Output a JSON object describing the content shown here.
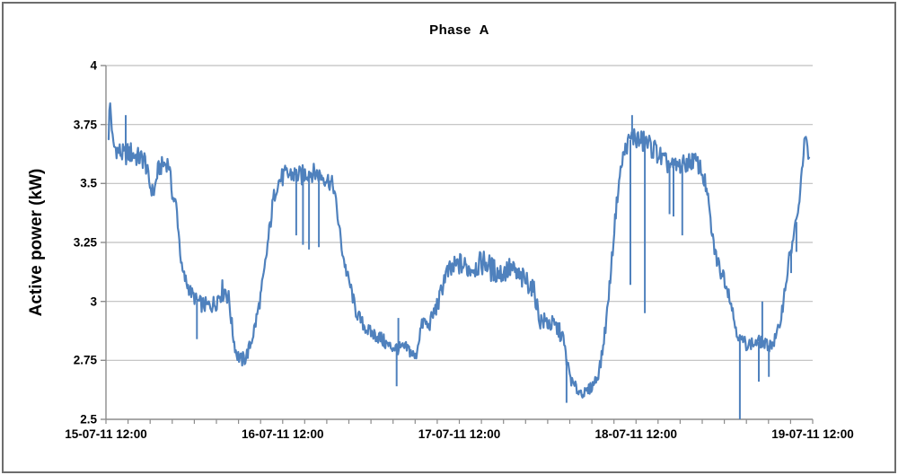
{
  "chart_data": {
    "type": "line",
    "title": "Phase  A",
    "ylabel": "Active power (kW)",
    "xlabel": "",
    "ylim": [
      2.5,
      4.0
    ],
    "ytick_step": 0.25,
    "ytick_labels": [
      "4",
      "3.75",
      "3.5",
      "3.25",
      "3",
      "2.75",
      "2.5"
    ],
    "xtick_labels": [
      "15-07-11 12:00",
      "16-07-11 12:00",
      "17-07-11 12:00",
      "18-07-11 12:00",
      "19-07-11 12:00"
    ],
    "x_range_days": [
      0,
      4
    ],
    "x_minor_ticks_per_day": 8,
    "grid": true,
    "legend": "none",
    "colors": {
      "line": "#4F81BD",
      "grid": "#BFBFBF",
      "axis": "#8C8C8C",
      "text": "#000000",
      "border": "#6D6D6D",
      "background": "#FFFFFF"
    },
    "series": [
      {
        "name": "Active power Phase A (kW)",
        "note": "points are [t_days_from_15-07-11_12:00, kW, noise_halfband_kW]; spikes are [t_days, kW]",
        "points": [
          [
            0.015,
            3.7,
            0.02
          ],
          [
            0.022,
            3.86,
            0.012
          ],
          [
            0.04,
            3.66,
            0.035
          ],
          [
            0.07,
            3.64,
            0.045
          ],
          [
            0.1,
            3.62,
            0.045
          ],
          [
            0.14,
            3.63,
            0.05
          ],
          [
            0.18,
            3.61,
            0.045
          ],
          [
            0.22,
            3.6,
            0.045
          ],
          [
            0.252,
            3.48,
            0.03
          ],
          [
            0.272,
            3.46,
            0.03
          ],
          [
            0.295,
            3.56,
            0.035
          ],
          [
            0.325,
            3.58,
            0.04
          ],
          [
            0.355,
            3.59,
            0.035
          ],
          [
            0.378,
            3.44,
            0.03
          ],
          [
            0.398,
            3.41,
            0.03
          ],
          [
            0.415,
            3.26,
            0.03
          ],
          [
            0.43,
            3.13,
            0.03
          ],
          [
            0.455,
            3.08,
            0.035
          ],
          [
            0.48,
            3.04,
            0.03
          ],
          [
            0.505,
            3.01,
            0.03
          ],
          [
            0.535,
            2.99,
            0.035
          ],
          [
            0.575,
            2.98,
            0.035
          ],
          [
            0.615,
            2.99,
            0.04
          ],
          [
            0.648,
            3.04,
            0.05
          ],
          [
            0.678,
            3.05,
            0.05
          ],
          [
            0.698,
            3.0,
            0.04
          ],
          [
            0.718,
            2.86,
            0.03
          ],
          [
            0.738,
            2.78,
            0.03
          ],
          [
            0.765,
            2.75,
            0.033
          ],
          [
            0.79,
            2.76,
            0.033
          ],
          [
            0.815,
            2.81,
            0.03
          ],
          [
            0.845,
            2.9,
            0.035
          ],
          [
            0.868,
            2.99,
            0.03
          ],
          [
            0.893,
            3.1,
            0.04
          ],
          [
            0.922,
            3.28,
            0.04
          ],
          [
            0.947,
            3.43,
            0.035
          ],
          [
            0.968,
            3.5,
            0.04
          ],
          [
            1.005,
            3.53,
            0.045
          ],
          [
            1.05,
            3.54,
            0.045
          ],
          [
            1.1,
            3.53,
            0.045
          ],
          [
            1.15,
            3.55,
            0.042
          ],
          [
            1.2,
            3.54,
            0.04
          ],
          [
            1.25,
            3.52,
            0.04
          ],
          [
            1.288,
            3.49,
            0.035
          ],
          [
            1.308,
            3.38,
            0.03
          ],
          [
            1.338,
            3.21,
            0.03
          ],
          [
            1.362,
            3.12,
            0.03
          ],
          [
            1.388,
            3.05,
            0.03
          ],
          [
            1.413,
            2.96,
            0.03
          ],
          [
            1.448,
            2.91,
            0.03
          ],
          [
            1.49,
            2.87,
            0.03
          ],
          [
            1.545,
            2.85,
            0.033
          ],
          [
            1.6,
            2.81,
            0.03
          ],
          [
            1.66,
            2.8,
            0.028
          ],
          [
            1.71,
            2.8,
            0.03
          ],
          [
            1.752,
            2.76,
            0.028
          ],
          [
            1.78,
            2.88,
            0.03
          ],
          [
            1.8,
            2.92,
            0.03
          ],
          [
            1.825,
            2.89,
            0.03
          ],
          [
            1.855,
            2.95,
            0.035
          ],
          [
            1.885,
            3.0,
            0.04
          ],
          [
            1.918,
            3.11,
            0.045
          ],
          [
            1.955,
            3.13,
            0.05
          ],
          [
            2.0,
            3.16,
            0.05
          ],
          [
            2.05,
            3.14,
            0.05
          ],
          [
            2.1,
            3.15,
            0.05
          ],
          [
            2.145,
            3.17,
            0.055
          ],
          [
            2.19,
            3.13,
            0.055
          ],
          [
            2.24,
            3.12,
            0.05
          ],
          [
            2.29,
            3.14,
            0.05
          ],
          [
            2.34,
            3.1,
            0.05
          ],
          [
            2.395,
            3.08,
            0.05
          ],
          [
            2.425,
            3.04,
            0.04
          ],
          [
            2.455,
            2.92,
            0.04
          ],
          [
            2.5,
            2.91,
            0.04
          ],
          [
            2.55,
            2.89,
            0.04
          ],
          [
            2.585,
            2.85,
            0.035
          ],
          [
            2.615,
            2.72,
            0.03
          ],
          [
            2.64,
            2.65,
            0.025
          ],
          [
            2.675,
            2.62,
            0.025
          ],
          [
            2.715,
            2.61,
            0.022
          ],
          [
            2.75,
            2.64,
            0.025
          ],
          [
            2.782,
            2.68,
            0.025
          ],
          [
            2.805,
            2.76,
            0.03
          ],
          [
            2.832,
            2.92,
            0.03
          ],
          [
            2.858,
            3.13,
            0.03
          ],
          [
            2.882,
            3.35,
            0.03
          ],
          [
            2.902,
            3.5,
            0.03
          ],
          [
            2.928,
            3.62,
            0.035
          ],
          [
            2.952,
            3.67,
            0.04
          ],
          [
            2.985,
            3.7,
            0.05
          ],
          [
            3.02,
            3.68,
            0.05
          ],
          [
            3.065,
            3.67,
            0.048
          ],
          [
            3.11,
            3.64,
            0.048
          ],
          [
            3.16,
            3.59,
            0.045
          ],
          [
            3.21,
            3.57,
            0.04
          ],
          [
            3.27,
            3.58,
            0.04
          ],
          [
            3.325,
            3.6,
            0.04
          ],
          [
            3.362,
            3.57,
            0.038
          ],
          [
            3.392,
            3.5,
            0.035
          ],
          [
            3.408,
            3.43,
            0.03
          ],
          [
            3.432,
            3.27,
            0.03
          ],
          [
            3.462,
            3.16,
            0.04
          ],
          [
            3.502,
            3.1,
            0.04
          ],
          [
            3.532,
            3.02,
            0.03
          ],
          [
            3.558,
            2.91,
            0.03
          ],
          [
            3.585,
            2.84,
            0.028
          ],
          [
            3.625,
            2.82,
            0.028
          ],
          [
            3.665,
            2.82,
            0.028
          ],
          [
            3.705,
            2.83,
            0.028
          ],
          [
            3.745,
            2.81,
            0.028
          ],
          [
            3.782,
            2.83,
            0.028
          ],
          [
            3.808,
            2.88,
            0.03
          ],
          [
            3.832,
            2.99,
            0.03
          ],
          [
            3.855,
            3.12,
            0.035
          ],
          [
            3.878,
            3.22,
            0.04
          ],
          [
            3.898,
            3.3,
            0.038
          ],
          [
            3.917,
            3.37,
            0.03
          ],
          [
            3.934,
            3.5,
            0.03
          ],
          [
            3.948,
            3.64,
            0.025
          ],
          [
            3.959,
            3.71,
            0.02
          ],
          [
            3.973,
            3.62,
            0.025
          ],
          [
            3.983,
            3.59,
            0.02
          ]
        ],
        "spikes": [
          [
            0.112,
            3.79
          ],
          [
            0.515,
            2.84
          ],
          [
            1.077,
            3.28
          ],
          [
            1.115,
            3.24
          ],
          [
            1.149,
            3.22
          ],
          [
            1.205,
            3.23
          ],
          [
            1.645,
            2.64
          ],
          [
            1.655,
            2.93
          ],
          [
            2.607,
            2.57
          ],
          [
            2.968,
            3.07
          ],
          [
            2.978,
            3.79
          ],
          [
            3.05,
            2.95
          ],
          [
            3.19,
            3.37
          ],
          [
            3.212,
            3.36
          ],
          [
            3.262,
            3.28
          ],
          [
            3.588,
            2.5
          ],
          [
            3.695,
            2.66
          ],
          [
            3.715,
            3.0
          ],
          [
            3.752,
            2.68
          ],
          [
            3.878,
            3.12
          ],
          [
            3.908,
            3.21
          ]
        ]
      }
    ]
  }
}
